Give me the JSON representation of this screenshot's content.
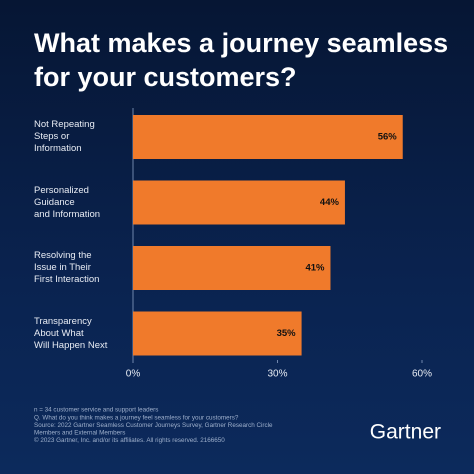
{
  "chart_data": {
    "type": "bar",
    "orientation": "horizontal",
    "title": "What makes a journey seamless for your customers?",
    "categories": [
      "Not Repeating\nSteps or\nInformation",
      "Personalized\nGuidance\nand Information",
      "Resolving the\nIssue in Their\nFirst Interaction",
      "Transparency\nAbout What\nWill Happen Next"
    ],
    "values": [
      56,
      44,
      41,
      35
    ],
    "value_labels": [
      "56%",
      "44%",
      "41%",
      "35%"
    ],
    "color": "#f07a2b",
    "xlim": [
      0,
      60
    ],
    "xticks": [
      {
        "value": 0,
        "label": "0%"
      },
      {
        "value": 30,
        "label": "30%"
      },
      {
        "value": 60,
        "label": "60%"
      }
    ],
    "notes": [
      "n = 34 customer service and support leaders",
      "Q. What do you think makes a journey feel seamless for your customers?",
      "Source: 2022 Gartner Seamless Customer Journeys Survey, Gartner Research Circle",
      "Members and External Members",
      "© 2023 Gartner, Inc. and/or its affiliates. All rights reserved. 2166650"
    ],
    "brand": "Gartner"
  }
}
